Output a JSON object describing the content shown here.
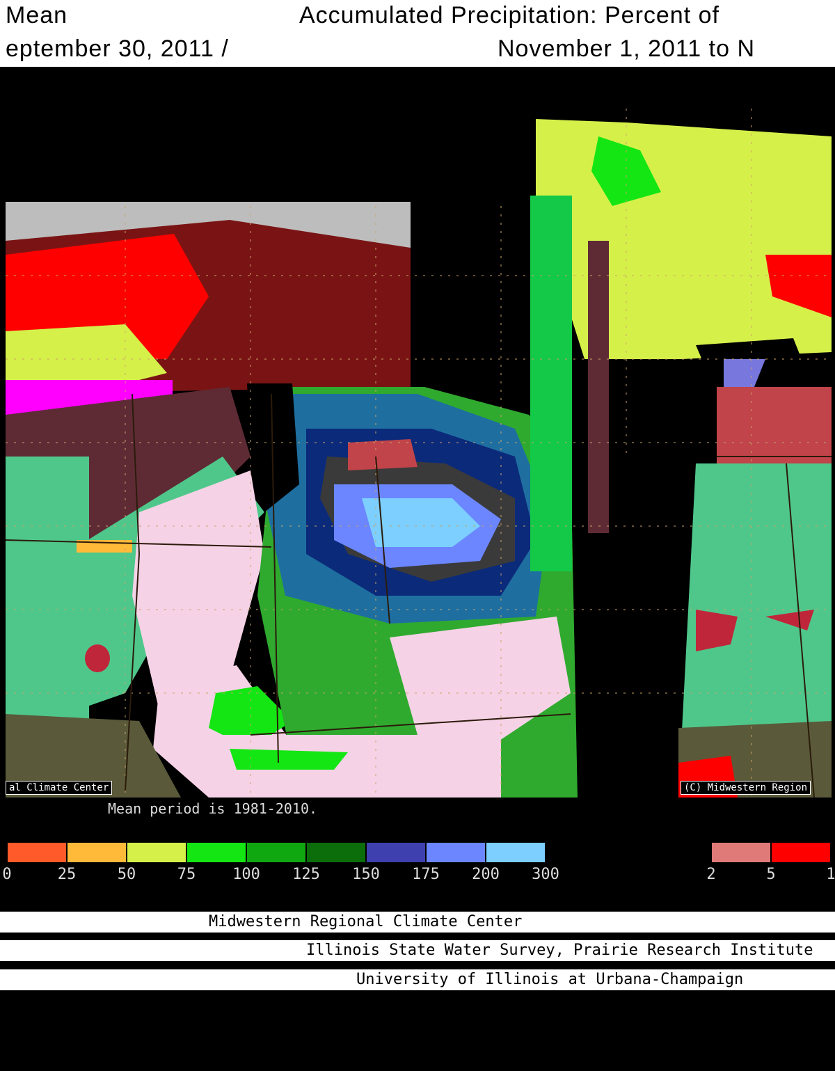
{
  "header": {
    "line1_left": "Mean",
    "line1_right": "Accumulated Precipitation: Percent of",
    "line2_left": "eptember 30, 2011 /",
    "line2_right": "November 1, 2011 to N"
  },
  "map": {
    "corner_label_left": "al Climate Center",
    "corner_label_right": "(C) Midwestern Region",
    "footnote": "Mean period is 1981-2010."
  },
  "legend_left": {
    "colors": [
      "#ff5a2a",
      "#ffba3a",
      "#d6f04a",
      "#14e614",
      "#10a810",
      "#0b6e0b",
      "#3f40b0",
      "#6b86ff",
      "#7ccfff"
    ],
    "ticks": [
      "0",
      "25",
      "50",
      "75",
      "100",
      "125",
      "150",
      "175",
      "200",
      "300"
    ]
  },
  "legend_right": {
    "colors": [
      "#e07a78",
      "#ff0000"
    ],
    "ticks": [
      "2",
      "5",
      "1"
    ]
  },
  "credits": {
    "line1": "Midwestern Regional Climate Center",
    "line2": "Illinois State Water Survey, Prairie Research Institute",
    "line3": "University of Illinois at Urbana-Champaign"
  }
}
